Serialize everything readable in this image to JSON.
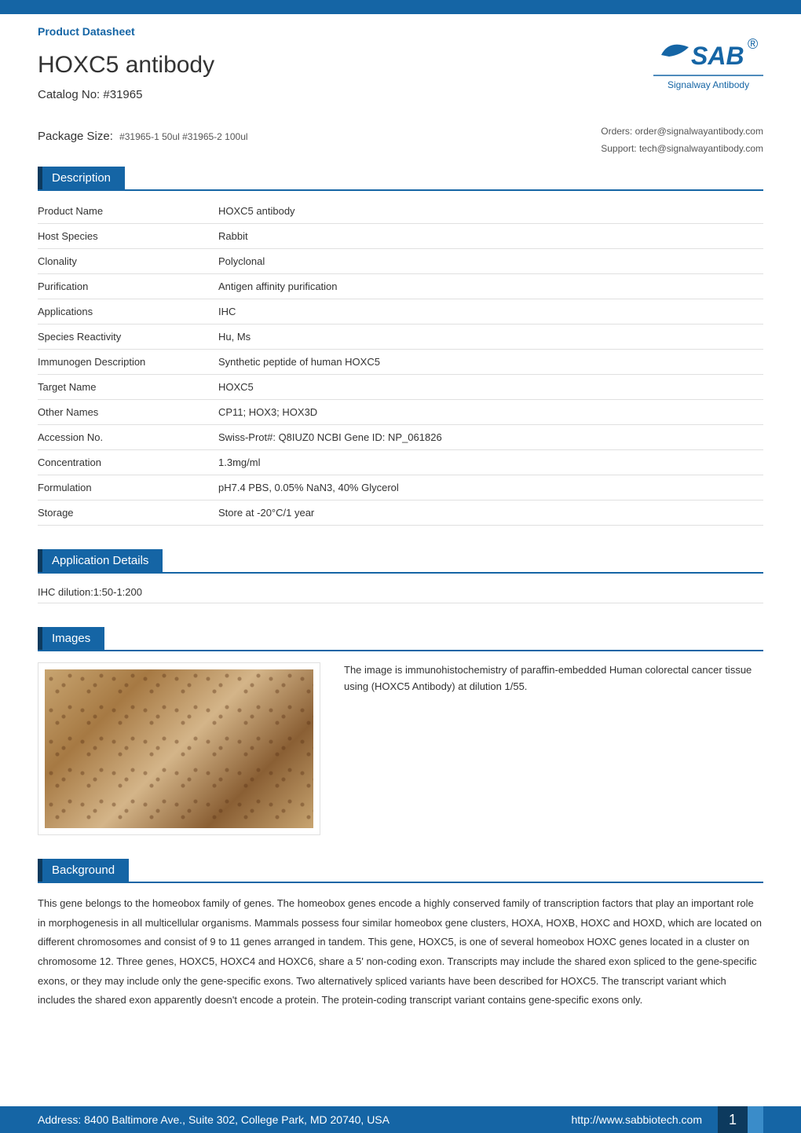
{
  "header": {
    "datasheet_label": "Product Datasheet",
    "product_title": "HOXC5 antibody",
    "catalog_label": "Catalog No:",
    "catalog_no": "#31965",
    "package_label": "Package Size:",
    "package_value": "#31965-1 50ul  #31965-2 100ul",
    "logo_brand": "SAB",
    "logo_tagline": "Signalway Antibody",
    "orders_label": "Orders: order@signalwayantibody.com",
    "support_label": "Support: tech@signalwayantibody.com"
  },
  "colors": {
    "primary": "#1565a5",
    "primary_dark": "#0d3a5e",
    "primary_light": "#3a8cc9",
    "text": "#333333",
    "text_muted": "#555555",
    "border": "#e0e0e0"
  },
  "sections": {
    "description": {
      "title": "Description",
      "rows": [
        {
          "label": "Product Name",
          "value": "HOXC5 antibody"
        },
        {
          "label": "Host Species",
          "value": "Rabbit"
        },
        {
          "label": "Clonality",
          "value": "Polyclonal"
        },
        {
          "label": "Purification",
          "value": "Antigen affinity purification"
        },
        {
          "label": "Applications",
          "value": "IHC"
        },
        {
          "label": "Species Reactivity",
          "value": "Hu, Ms"
        },
        {
          "label": "Immunogen Description",
          "value": "Synthetic peptide of human HOXC5"
        },
        {
          "label": "Target Name",
          "value": "HOXC5"
        },
        {
          "label": "Other Names",
          "value": "CP11; HOX3; HOX3D"
        },
        {
          "label": "Accession No.",
          "value": "Swiss-Prot#: Q8IUZ0 NCBI Gene ID: NP_061826"
        },
        {
          "label": "Concentration",
          "value": "1.3mg/ml"
        },
        {
          "label": "Formulation",
          "value": "pH7.4 PBS, 0.05% NaN3, 40% Glycerol"
        },
        {
          "label": "Storage",
          "value": "Store at -20°C/1 year"
        }
      ]
    },
    "application_details": {
      "title": "Application Details",
      "text": "IHC dilution:1:50-1:200"
    },
    "images": {
      "title": "Images",
      "caption": "The image is immunohistochemistry of paraffin-embedded Human colorectal cancer tissue using (HOXC5 Antibody) at dilution 1/55."
    },
    "background": {
      "title": "Background",
      "text": "This gene belongs to the homeobox family of genes. The homeobox genes encode a highly conserved family of transcription factors that play an important role in morphogenesis in all multicellular organisms. Mammals possess four similar homeobox gene clusters, HOXA, HOXB, HOXC and HOXD, which are located on different chromosomes and consist of 9 to 11 genes arranged in tandem. This gene, HOXC5, is one of several homeobox HOXC genes located in a cluster on chromosome 12. Three genes, HOXC5, HOXC4 and HOXC6, share a 5' non-coding exon. Transcripts may include the shared exon spliced to the gene-specific exons, or they may include only the gene-specific exons. Two alternatively spliced variants have been described for HOXC5. The transcript variant which includes the shared exon apparently doesn't encode a protein. The protein-coding transcript variant contains gene-specific exons only."
    }
  },
  "footer": {
    "address": "Address: 8400 Baltimore Ave., Suite 302, College Park, MD 20740, USA",
    "url": "http://www.sabbiotech.com",
    "page_number": "1"
  }
}
